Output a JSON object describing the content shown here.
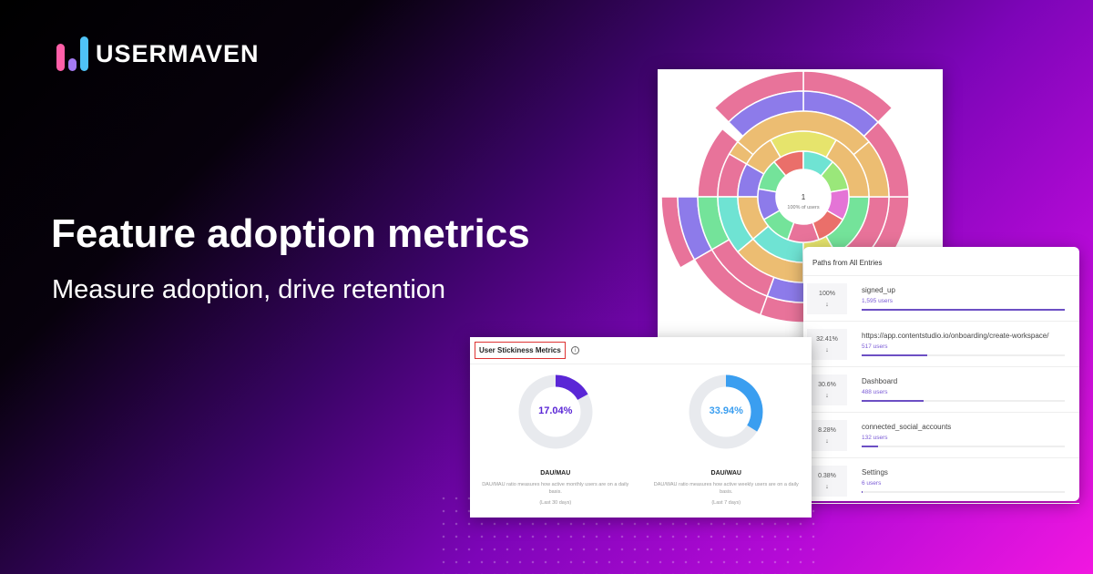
{
  "brand": {
    "name": "USERMAVEN",
    "bar_colors": [
      "#ff5fa8",
      "#a57af2",
      "#4fc3f7"
    ]
  },
  "hero": {
    "title": "Feature adoption metrics",
    "subtitle": "Measure adoption, drive retention"
  },
  "sunburst": {
    "center_value": "1",
    "center_label": "100% of users",
    "palette": [
      "#e8739a",
      "#8d7bea",
      "#6fe3d3",
      "#ecbd72",
      "#e6e46c",
      "#9ae77a",
      "#ea6f6a",
      "#74e39a",
      "#e474d6"
    ]
  },
  "paths": {
    "title": "Paths from All Entries",
    "accent": "#6c4fc4",
    "rows": [
      {
        "pct": "100%",
        "name": "signed_up",
        "users": "1,595 users",
        "fill": 100
      },
      {
        "pct": "32.41%",
        "name": "https://app.contentstudio.io/onboarding/create-workspace/",
        "users": "517 users",
        "fill": 32.41
      },
      {
        "pct": "30.6%",
        "name": "Dashboard",
        "users": "488 users",
        "fill": 30.6
      },
      {
        "pct": "8.28%",
        "name": "connected_social_accounts",
        "users": "132 users",
        "fill": 8.28
      },
      {
        "pct": "0.38%",
        "name": "Settings",
        "users": "6 users",
        "fill": 0.38
      }
    ]
  },
  "stickiness": {
    "title": "User Stickiness Metrics",
    "info_icon": "info-icon",
    "metrics": [
      {
        "value": "17.04%",
        "percent": 17.04,
        "color": "#5a26d6",
        "name": "DAU/MAU",
        "desc": "DAU/MAU ratio measures how active monthly users are on a daily basis.",
        "period": "(Last 30 days)"
      },
      {
        "value": "33.94%",
        "percent": 33.94,
        "color": "#3a9ef0",
        "name": "DAU/WAU",
        "desc": "DAU/WAU ratio measures how active weekly users are on a daily basis.",
        "period": "(Last 7 days)"
      }
    ]
  }
}
